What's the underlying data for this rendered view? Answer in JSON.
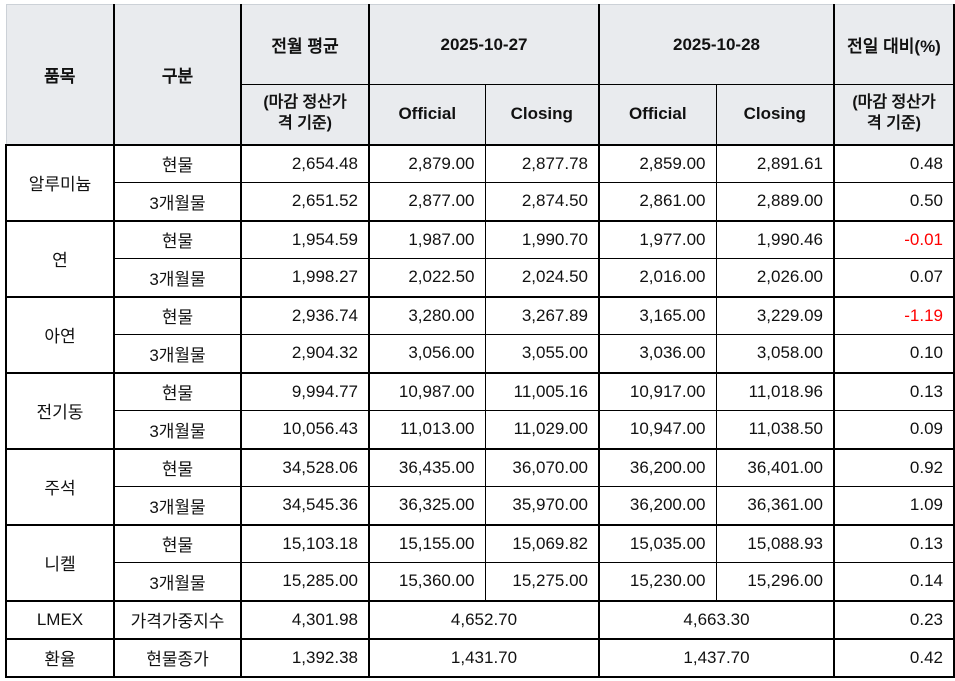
{
  "colors": {
    "header_bg": "#e9ebee",
    "negative_text": "#ff0000",
    "grid": "#000000",
    "body_text": "#111111"
  },
  "header": {
    "item": "품목",
    "category": "구분",
    "prev_avg": "전월 평균",
    "prev_avg_note": "(마감 정산가\n격 기준)",
    "date_1": "2025-10-27",
    "date_2": "2025-10-28",
    "official": "Official",
    "closing": "Closing",
    "day_change": "전일 대비(%)",
    "day_change_note": "(마감 정산가\n격 기준)"
  },
  "groups": [
    {
      "item": "알루미늄",
      "rows": [
        {
          "category": "현물",
          "prev_avg": "2,654.48",
          "d1_official": "2,879.00",
          "d1_closing": "2,877.78",
          "d2_official": "2,859.00",
          "d2_closing": "2,891.61",
          "change": "0.48"
        },
        {
          "category": "3개월물",
          "prev_avg": "2,651.52",
          "d1_official": "2,877.00",
          "d1_closing": "2,874.50",
          "d2_official": "2,861.00",
          "d2_closing": "2,889.00",
          "change": "0.50"
        }
      ]
    },
    {
      "item": "연",
      "rows": [
        {
          "category": "현물",
          "prev_avg": "1,954.59",
          "d1_official": "1,987.00",
          "d1_closing": "1,990.70",
          "d2_official": "1,977.00",
          "d2_closing": "1,990.46",
          "change": "-0.01"
        },
        {
          "category": "3개월물",
          "prev_avg": "1,998.27",
          "d1_official": "2,022.50",
          "d1_closing": "2,024.50",
          "d2_official": "2,016.00",
          "d2_closing": "2,026.00",
          "change": "0.07"
        }
      ]
    },
    {
      "item": "아연",
      "rows": [
        {
          "category": "현물",
          "prev_avg": "2,936.74",
          "d1_official": "3,280.00",
          "d1_closing": "3,267.89",
          "d2_official": "3,165.00",
          "d2_closing": "3,229.09",
          "change": "-1.19"
        },
        {
          "category": "3개월물",
          "prev_avg": "2,904.32",
          "d1_official": "3,056.00",
          "d1_closing": "3,055.00",
          "d2_official": "3,036.00",
          "d2_closing": "3,058.00",
          "change": "0.10"
        }
      ]
    },
    {
      "item": "전기동",
      "rows": [
        {
          "category": "현물",
          "prev_avg": "9,994.77",
          "d1_official": "10,987.00",
          "d1_closing": "11,005.16",
          "d2_official": "10,917.00",
          "d2_closing": "11,018.96",
          "change": "0.13"
        },
        {
          "category": "3개월물",
          "prev_avg": "10,056.43",
          "d1_official": "11,013.00",
          "d1_closing": "11,029.00",
          "d2_official": "10,947.00",
          "d2_closing": "11,038.50",
          "change": "0.09"
        }
      ]
    },
    {
      "item": "주석",
      "rows": [
        {
          "category": "현물",
          "prev_avg": "34,528.06",
          "d1_official": "36,435.00",
          "d1_closing": "36,070.00",
          "d2_official": "36,200.00",
          "d2_closing": "36,401.00",
          "change": "0.92"
        },
        {
          "category": "3개월물",
          "prev_avg": "34,545.36",
          "d1_official": "36,325.00",
          "d1_closing": "35,970.00",
          "d2_official": "36,200.00",
          "d2_closing": "36,361.00",
          "change": "1.09"
        }
      ]
    },
    {
      "item": "니켈",
      "rows": [
        {
          "category": "현물",
          "prev_avg": "15,103.18",
          "d1_official": "15,155.00",
          "d1_closing": "15,069.82",
          "d2_official": "15,035.00",
          "d2_closing": "15,088.93",
          "change": "0.13"
        },
        {
          "category": "3개월물",
          "prev_avg": "15,285.00",
          "d1_official": "15,360.00",
          "d1_closing": "15,275.00",
          "d2_official": "15,230.00",
          "d2_closing": "15,296.00",
          "change": "0.14"
        }
      ]
    }
  ],
  "summary": [
    {
      "item": "LMEX",
      "category": "가격가중지수",
      "prev_avg": "4,301.98",
      "d1": "4,652.70",
      "d2": "4,663.30",
      "change": "0.23"
    },
    {
      "item": "환율",
      "category": "현물종가",
      "prev_avg": "1,392.38",
      "d1": "1,431.70",
      "d2": "1,437.70",
      "change": "0.42"
    }
  ]
}
